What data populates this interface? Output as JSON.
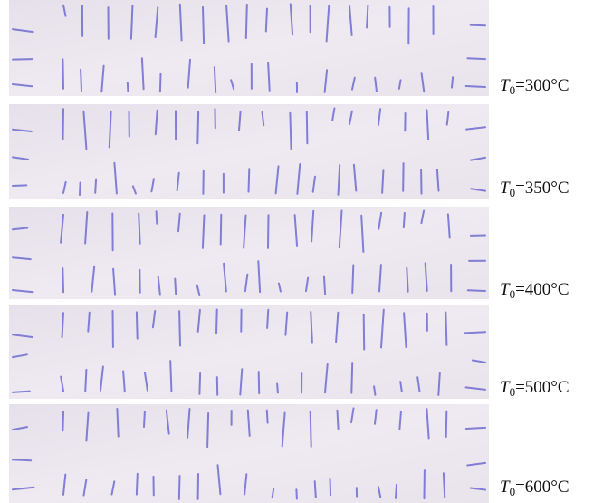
{
  "panels": [
    {
      "symbol": "T",
      "subscript": "0",
      "text": "=300°C"
    },
    {
      "symbol": "T",
      "subscript": "0",
      "text": "=350°C"
    },
    {
      "symbol": "T",
      "subscript": "0",
      "text": "=400°C"
    },
    {
      "symbol": "T",
      "subscript": "0",
      "text": "=500°C"
    },
    {
      "symbol": "T",
      "subscript": "0",
      "text": "=600°C"
    }
  ]
}
